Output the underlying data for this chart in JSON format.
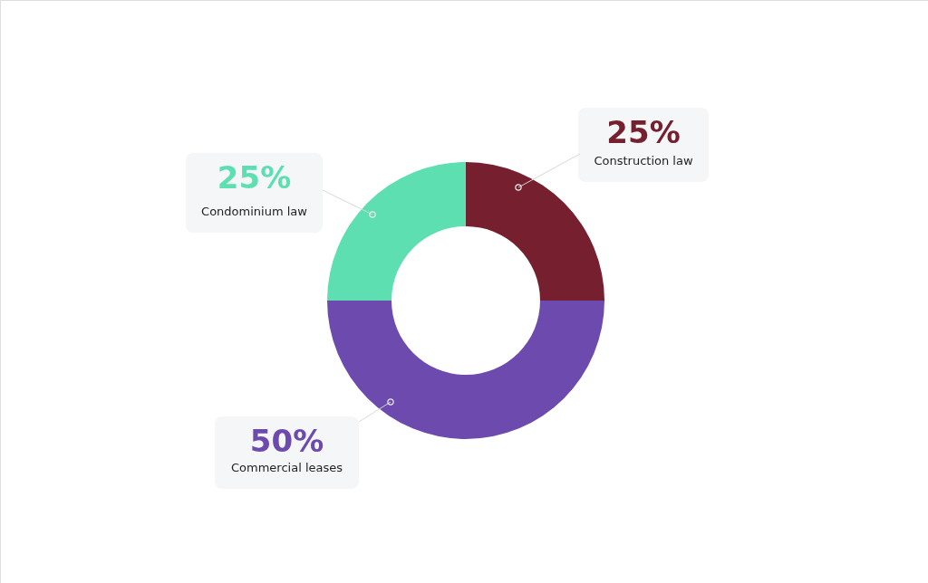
{
  "chart_data": {
    "type": "donut",
    "categories": [
      "Construction law",
      "Commercial leases",
      "Condominium law"
    ],
    "values": [
      25,
      50,
      25
    ],
    "colors": [
      "#76202f",
      "#6c4aae",
      "#5ddfb2"
    ],
    "value_labels": [
      "25%",
      "50%",
      "25%"
    ]
  }
}
